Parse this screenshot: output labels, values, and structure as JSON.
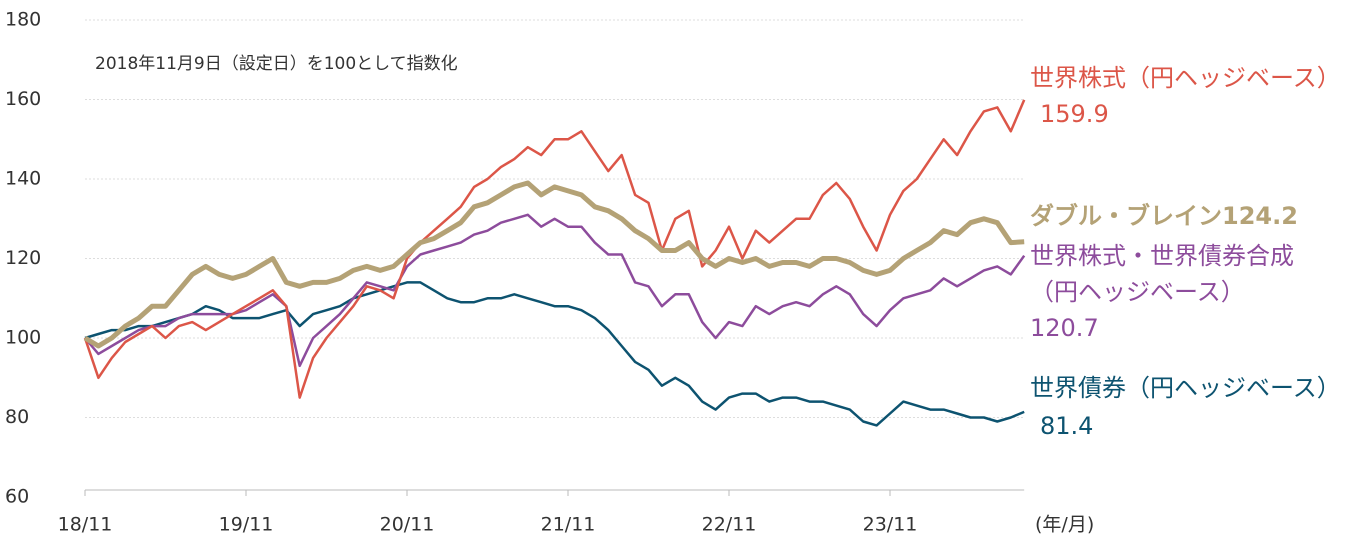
{
  "chart_data": {
    "type": "line",
    "annotation": "2018年11月9日（設定日）を100として指数化",
    "x_label": "(年/月)",
    "categories": [
      "18/11",
      null,
      null,
      null,
      null,
      null,
      null,
      null,
      null,
      null,
      null,
      null,
      "19/11",
      null,
      null,
      null,
      null,
      null,
      null,
      null,
      null,
      null,
      null,
      null,
      "20/11",
      null,
      null,
      null,
      null,
      null,
      null,
      null,
      null,
      null,
      null,
      null,
      "21/11",
      null,
      null,
      null,
      null,
      null,
      null,
      null,
      null,
      null,
      null,
      null,
      "22/11",
      null,
      null,
      null,
      null,
      null,
      null,
      null,
      null,
      null,
      null,
      null,
      "23/11",
      null,
      null,
      null,
      null,
      null,
      null,
      null,
      null,
      null,
      null
    ],
    "ylim": [
      60,
      180
    ],
    "yticks": [
      60,
      80,
      100,
      120,
      140,
      160,
      180
    ],
    "grid": true,
    "series": [
      {
        "name": "世界株式（円ヘッジベース）",
        "color": "#dc5648",
        "values": [
          100,
          90,
          95,
          99,
          101,
          103,
          100,
          103,
          104,
          102,
          104,
          106,
          108,
          110,
          112,
          108,
          85,
          95,
          100,
          104,
          108,
          113,
          112,
          110,
          120,
          124,
          127,
          130,
          133,
          138,
          140,
          143,
          145,
          148,
          146,
          150,
          150,
          152,
          147,
          142,
          146,
          136,
          134,
          122,
          130,
          132,
          118,
          122,
          128,
          120,
          127,
          124,
          127,
          130,
          130,
          136,
          139,
          135,
          128,
          122,
          131,
          137,
          140,
          145,
          150,
          146,
          152,
          157,
          158,
          152,
          159.9
        ]
      },
      {
        "name": "ダブル・ブレイン",
        "color": "#b4a276",
        "values": [
          100,
          98,
          100,
          103,
          105,
          108,
          108,
          112,
          116,
          118,
          116,
          115,
          116,
          118,
          120,
          114,
          113,
          114,
          114,
          115,
          117,
          118,
          117,
          118,
          121,
          124,
          125,
          127,
          129,
          133,
          134,
          136,
          138,
          139,
          136,
          138,
          137,
          136,
          133,
          132,
          130,
          127,
          125,
          122,
          122,
          124,
          120,
          118,
          120,
          119,
          120,
          118,
          119,
          119,
          118,
          120,
          120,
          119,
          117,
          116,
          117,
          120,
          122,
          124,
          127,
          126,
          129,
          130,
          129,
          124,
          124.2
        ]
      },
      {
        "name": "世界株式・世界債券合成（円ヘッジベース）",
        "color": "#8d4c9c",
        "values": [
          100,
          96,
          98,
          100,
          102,
          103,
          103,
          105,
          106,
          106,
          106,
          106,
          107,
          109,
          111,
          108,
          93,
          100,
          103,
          106,
          110,
          114,
          113,
          112,
          118,
          121,
          122,
          123,
          124,
          126,
          127,
          129,
          130,
          131,
          128,
          130,
          128,
          128,
          124,
          121,
          121,
          114,
          113,
          108,
          111,
          111,
          104,
          100,
          104,
          103,
          108,
          106,
          108,
          109,
          108,
          111,
          113,
          111,
          106,
          103,
          107,
          110,
          111,
          112,
          115,
          113,
          115,
          117,
          118,
          116,
          120.7
        ]
      },
      {
        "name": "世界債券（円ヘッジベース）",
        "color": "#0d5370",
        "values": [
          100,
          101,
          102,
          102,
          103,
          103,
          104,
          105,
          106,
          108,
          107,
          105,
          105,
          105,
          106,
          107,
          103,
          106,
          107,
          108,
          110,
          111,
          112,
          113,
          114,
          114,
          112,
          110,
          109,
          109,
          110,
          110,
          111,
          110,
          109,
          108,
          108,
          107,
          105,
          102,
          98,
          94,
          92,
          88,
          90,
          88,
          84,
          82,
          85,
          86,
          86,
          84,
          85,
          85,
          84,
          84,
          83,
          82,
          79,
          78,
          81,
          84,
          83,
          82,
          82,
          81,
          80,
          80,
          79,
          80,
          81.4
        ]
      }
    ]
  }
}
